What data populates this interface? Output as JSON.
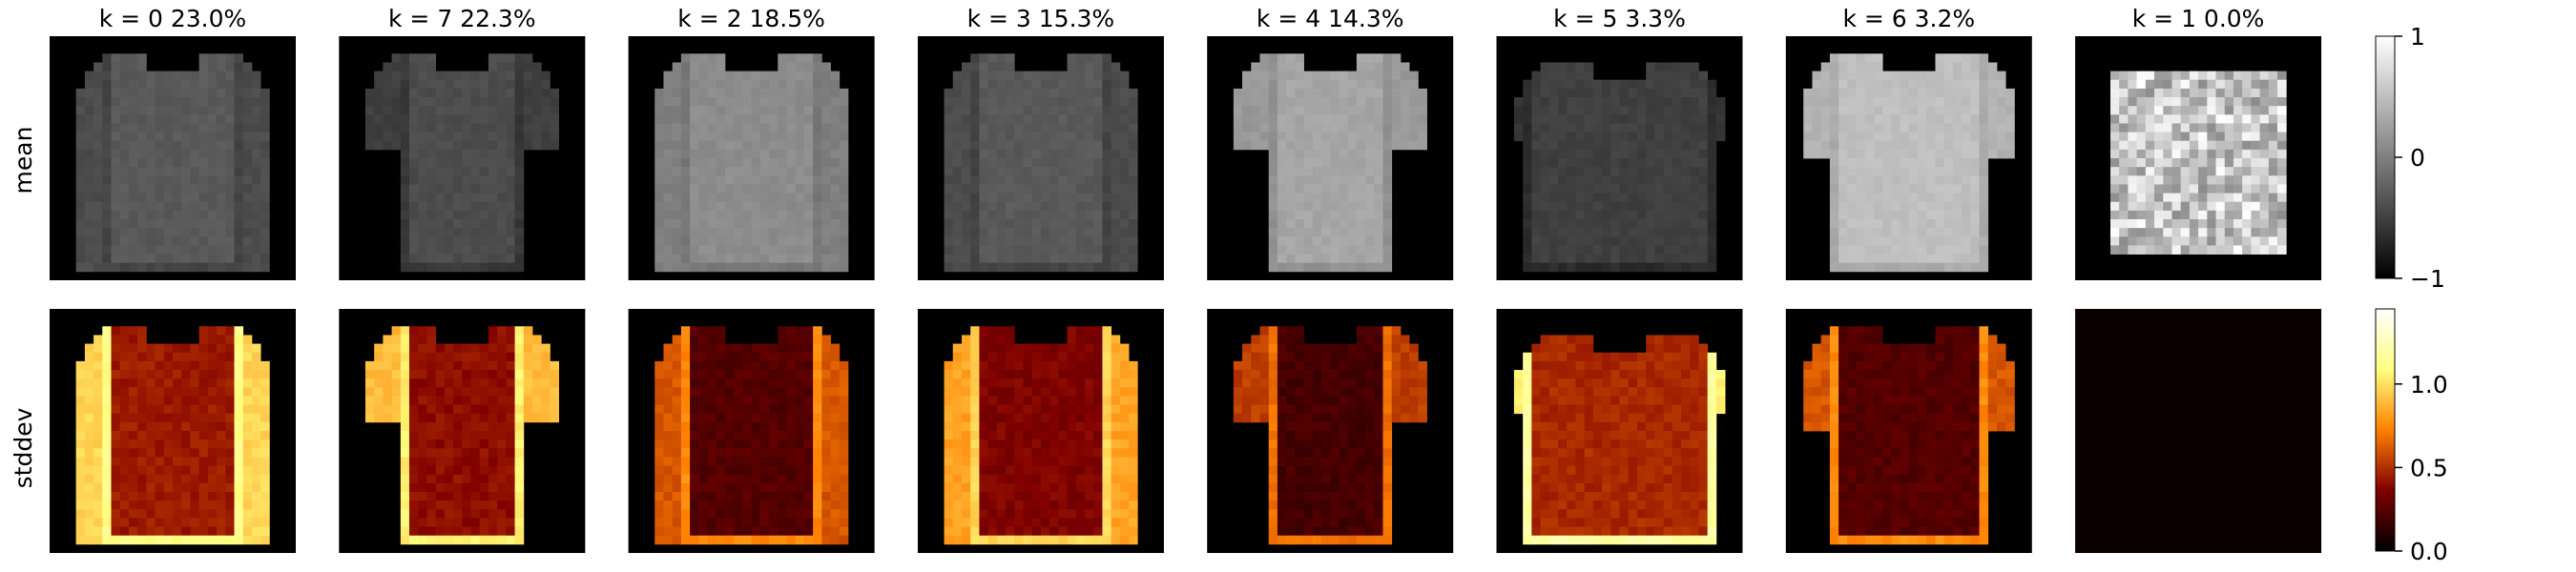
{
  "chart_data": {
    "type": "heatmap",
    "row_labels": [
      "mean",
      "stddev"
    ],
    "panels": [
      {
        "title": "k = 0  23.0%",
        "shape": "long-sleeve",
        "mean_level": 0.35,
        "std_level": 0.55
      },
      {
        "title": "k = 7  22.3%",
        "shape": "tshirt",
        "mean_level": 0.3,
        "std_level": 0.5
      },
      {
        "title": "k = 2  18.5%",
        "shape": "long-sleeve",
        "mean_level": 0.55,
        "std_level": 0.3
      },
      {
        "title": "k = 3  15.3%",
        "shape": "long-sleeve",
        "mean_level": 0.35,
        "std_level": 0.45
      },
      {
        "title": "k = 4  14.3%",
        "shape": "tshirt",
        "mean_level": 0.65,
        "std_level": 0.25
      },
      {
        "title": "k = 5   3.3%",
        "shape": "boxy",
        "mean_level": 0.25,
        "std_level": 0.6
      },
      {
        "title": "k = 6   3.2%",
        "shape": "tshirt-wide",
        "mean_level": 0.75,
        "std_level": 0.3
      },
      {
        "title": "k = 1   0.0%",
        "shape": "noisy",
        "mean_level": 0.8,
        "std_level": 0.0
      }
    ],
    "colorbars": [
      {
        "name": "mean",
        "colormap": "gray",
        "range": [
          -1,
          1
        ],
        "ticks": [
          "1",
          "0",
          "−1"
        ],
        "tick_values": [
          1,
          0,
          -1
        ]
      },
      {
        "name": "stddev",
        "colormap": "afmhot",
        "range": [
          0,
          1.45
        ],
        "ticks": [
          "1.0",
          "0.5",
          "0.0"
        ],
        "tick_values": [
          1.0,
          0.5,
          0.0
        ]
      }
    ],
    "grid": false
  }
}
